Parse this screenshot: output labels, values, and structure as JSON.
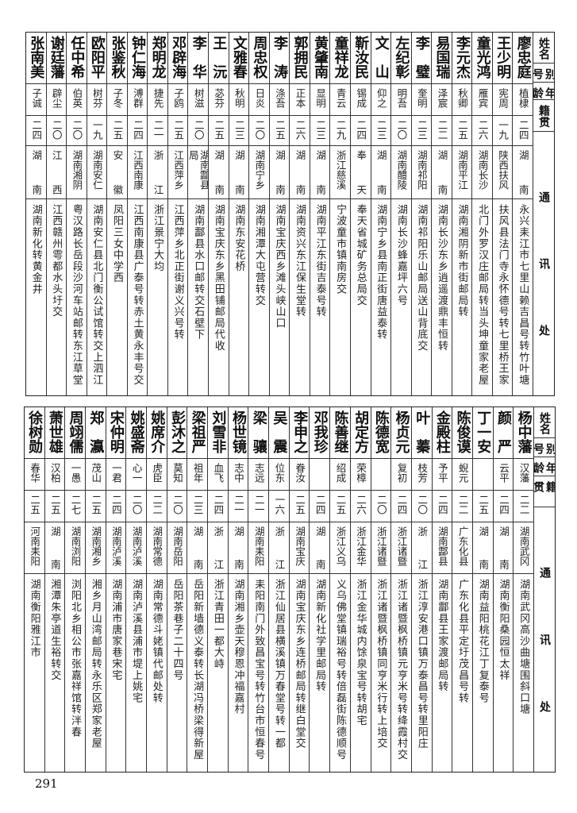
{
  "headers": {
    "name": "姓名",
    "alias": "别号",
    "age": "年龄",
    "origin": "籍贯",
    "address": "通讯处"
  },
  "table_top": [
    {
      "name": "廖忠庭",
      "alias": "植棣",
      "age": "二四",
      "origin": "湖南",
      "address": "永兴耒江市七里山赖吉昌号转竹叶塘"
    },
    {
      "name": "王少明",
      "alias": "宪周",
      "age": "一九",
      "origin": "陕西扶风",
      "address": "扶风县法门寺永怀德号转七里桥王家"
    },
    {
      "name": "童光鸿",
      "alias": "雁宾",
      "age": "二六",
      "origin": "湖南长沙",
      "address": "北门外罗汉庄邮局转当头坤童家老屋"
    },
    {
      "name": "李元杰",
      "alias": "秋卿",
      "age": "二五",
      "origin": "湖南平江",
      "address": "湖南湘阴新市街邮局转"
    },
    {
      "name": "易国瑞",
      "alias": "泽宸",
      "age": "二二",
      "origin": "湖南",
      "address": "湖南长沙东乡逍遥渡鼎丰恒转"
    },
    {
      "name": "李璧",
      "alias": "奎明",
      "age": "二三",
      "origin": "湖南祁阳",
      "address": "湖南祁阳乐山邮局送山背底交"
    },
    {
      "name": "左纪彰",
      "alias": "明吾",
      "age": "二〇",
      "origin": "湖南醴陵",
      "address": "湖南长沙蜂嘉坪六号"
    },
    {
      "name": "文山",
      "alias": "仰之",
      "age": "二三",
      "origin": "湖南",
      "address": "湖南宁乡县南正街唐益泰转"
    },
    {
      "name": "靳汝民",
      "alias": "锡成",
      "age": "二四",
      "origin": "奉天",
      "address": "奉天省城矿务总局交"
    },
    {
      "name": "童祥龙",
      "alias": "青云",
      "age": "二九",
      "origin": "浙江慈溪",
      "address": "宁波童市镇南房交"
    },
    {
      "name": "黄肇南",
      "alias": "显明",
      "age": "二三",
      "origin": "湖南",
      "address": "湖南平江东街吉泰号转"
    },
    {
      "name": "郭拥民",
      "alias": "正本",
      "age": "二六",
      "origin": "湖南",
      "address": "湖南资兴东江保生堂转"
    },
    {
      "name": "李涛",
      "alias": "涤吾",
      "age": "二五",
      "origin": "湖南",
      "address": "湖南宝庆西乡滩头峡山口"
    },
    {
      "name": "周忠权",
      "alias": "日炎",
      "age": "二〇",
      "origin": "湖南宁乡",
      "address": "湖南湘潭大屯营转交"
    },
    {
      "name": "文雅春",
      "alias": "秋明",
      "age": "二三",
      "origin": "湖南",
      "address": "湖南东安花桥"
    },
    {
      "name": "王沅",
      "alias": "苾芬",
      "age": "二五",
      "origin": "湖南",
      "address": "湖南宝庆东乡黑田铺邮局代收"
    },
    {
      "name": "李华",
      "alias": "树滋",
      "age": "二〇",
      "origin": "湖南酃县局",
      "address": "湖南酃县水口邮转交石壁下"
    },
    {
      "name": "邓辟海",
      "alias": "子鸥",
      "age": "二五",
      "origin": "江西萍乡",
      "address": "江西萍乡北正街谢义兴号转"
    },
    {
      "name": "郑明龙",
      "alias": "捷先",
      "age": "二一",
      "origin": "浙江",
      "address": "浙江景宁大均"
    },
    {
      "name": "钟仁海",
      "alias": "溥群",
      "age": "二四",
      "origin": "江西南康",
      "address": "江西南康县广泰号转赤土黄永丰号交"
    },
    {
      "name": "张鉴秋",
      "alias": "子冬",
      "age": "二五",
      "origin": "安徽",
      "address": "凤阳三女中学西"
    },
    {
      "name": "欧阳平",
      "alias": "树芬",
      "age": "一九",
      "origin": "湖南安仁",
      "address": "湖南安仁县北门衡公试馆转交上泗江"
    },
    {
      "name": "任中希",
      "alias": "伯英",
      "age": "二〇",
      "origin": "湖南湘阴",
      "address": "粤汉路长岳段沙河车站邮转东江草堂"
    },
    {
      "name": "谢廷藩",
      "alias": "辟尘",
      "age": "二〇",
      "origin": "江西",
      "address": "江西赣州雩都水头圩交"
    },
    {
      "name": "张南美",
      "alias": "子诚",
      "age": "二四",
      "origin": "湖南",
      "address": "湖南新化转黄金井"
    }
  ],
  "table_bottom": [
    {
      "name": "杨中藩",
      "alias": "汉藩",
      "age": "二二",
      "origin": "湖南武冈",
      "address": "湖南武冈高沙曲塘围斜口塘"
    },
    {
      "name": "颜严",
      "alias": "云平",
      "age": "二四",
      "origin": "湖南",
      "address": "湖南衡阳桑园恒太祥"
    },
    {
      "name": "丁一安",
      "alias": "",
      "age": "二五",
      "origin": "湖南",
      "address": "湖南益阳桃花江丁复泰号"
    },
    {
      "name": "陈俊谟",
      "alias": "蜺元",
      "age": "二二",
      "origin": "广东化县",
      "address": "广东化县平定圩茂昌号转"
    },
    {
      "name": "金殿柱",
      "alias": "予平",
      "age": "二四",
      "origin": "湖南酃县",
      "address": "湖南酃县王家渡邮局转"
    },
    {
      "name": "叶蓁",
      "alias": "枝芳",
      "age": "二〇",
      "origin": "浙江",
      "address": "浙江淳安港口镇万泰昌号转里阳庄"
    },
    {
      "name": "杨贞元",
      "alias": "复初",
      "age": "二四",
      "origin": "浙江诸暨",
      "address": "浙江诸暨枫桥镇元亨米号转绛霞村交"
    },
    {
      "name": "陈德宽",
      "alias": "",
      "age": "二〇",
      "origin": "浙江诸暨",
      "address": "浙江诸暨枫桥镇同亨米行转上培交"
    },
    {
      "name": "胡定方",
      "alias": "荣樟",
      "age": "二六",
      "origin": "浙江金华",
      "address": "浙江金华城内馀泉宝号转胡宅"
    },
    {
      "name": "陈善继",
      "alias": "绍成",
      "age": "二五",
      "origin": "浙江义乌",
      "address": "义乌佛堂镇瑞裕号转倍磊街陈德顺号"
    },
    {
      "name": "邓我珍",
      "alias": "",
      "age": "二四",
      "origin": "湖南",
      "address": "湖南新化社学里邮局转"
    },
    {
      "name": "李申之",
      "alias": "眷汝",
      "age": "二五",
      "origin": "湖南宝庆",
      "address": "湖南宝庆东乡连桥邮局转继白堂交"
    },
    {
      "name": "吴震",
      "alias": "位东",
      "age": "一六",
      "origin": "浙江",
      "address": "浙江仙居县横溪镇万春堂号转一都"
    },
    {
      "name": "梁骧",
      "alias": "志远",
      "age": "二一",
      "origin": "湖南耒阳",
      "address": "耒阳南门外致昌宝号转竹台市恒春号"
    },
    {
      "name": "杨世镜",
      "alias": "志中",
      "age": "二一",
      "origin": "湖南",
      "address": "湖南湘乡壶天穆恩冲福嘉村"
    },
    {
      "name": "刘雪非",
      "alias": "血飞",
      "age": "二四",
      "origin": "浙江",
      "address": "浙江青田一都大峙"
    },
    {
      "name": "梁祖严",
      "alias": "祖年",
      "age": "二三",
      "origin": "湖南",
      "address": "岳阳新墙德义泰转长湖冯桥梁得新屋"
    },
    {
      "name": "彭沐之",
      "alias": "莫知",
      "age": "二〇",
      "origin": "湖南岳阳",
      "address": "岳阳茶巷子二十四号"
    },
    {
      "name": "姚席介",
      "alias": "虎臣",
      "age": "二二",
      "origin": "湖南常德",
      "address": "湖南常德斗姥镇代邮处转"
    },
    {
      "name": "姚盛斋",
      "alias": "心一",
      "age": "二〇",
      "origin": "湖南泸溪",
      "address": "湖南泸溪县浦市堤上姚宅"
    },
    {
      "name": "宋仲明",
      "alias": "一君",
      "age": "二四",
      "origin": "湖南泸溪",
      "address": "湖南浦市唐家巷宋宅"
    },
    {
      "name": "郑瀛",
      "alias": "茂山",
      "age": "二五",
      "origin": "湖南湘乡",
      "address": "湘乡月山湾邮局转永乐区郑家老屋"
    },
    {
      "name": "周翊儒",
      "alias": "一愚",
      "age": "二七",
      "origin": "湖南浏阳",
      "address": "浏阳北乡相公市张嘉祥馆转泮春"
    },
    {
      "name": "萧世雄",
      "alias": "汉柏",
      "age": "二五",
      "origin": "湖南",
      "address": "湘潭朱亭道生裕转交"
    },
    {
      "name": "徐树勋",
      "alias": "春华",
      "age": "二五",
      "origin": "河南耒阳",
      "address": "湖南衡阳雅江市"
    }
  ],
  "page_number": "291"
}
